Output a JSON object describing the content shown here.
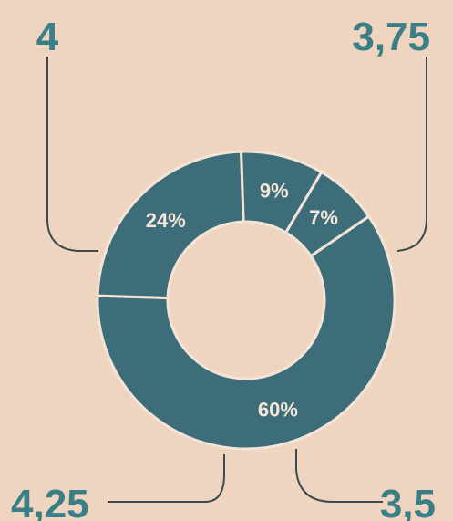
{
  "chart_data": {
    "type": "donut",
    "categories": [
      "4",
      "3,75",
      "3,5",
      "4,25"
    ],
    "values": [
      60,
      24,
      9,
      7
    ],
    "value_labels": [
      "60%",
      "24%",
      "9%",
      "7%"
    ],
    "color": "#3d6d78"
  }
}
